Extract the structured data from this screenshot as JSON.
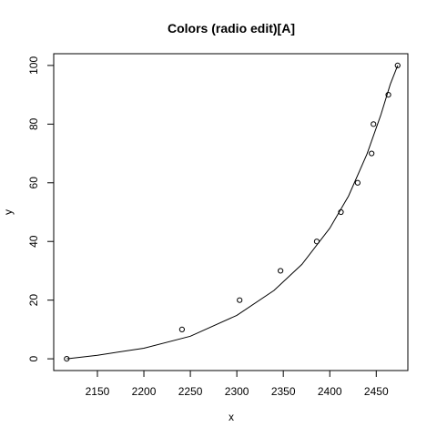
{
  "chart_data": {
    "type": "scatter",
    "title": "Colors (radio edit)[A]",
    "xlabel": "x",
    "ylabel": "y",
    "xlim": [
      2103,
      2484
    ],
    "ylim": [
      -4,
      104
    ],
    "x_ticks": [
      2150,
      2200,
      2250,
      2300,
      2350,
      2400,
      2450
    ],
    "y_ticks": [
      0,
      20,
      40,
      60,
      80,
      100
    ],
    "grid": false,
    "legend": "none",
    "series": [
      {
        "kind": "points",
        "x": [
          2117,
          2241,
          2303,
          2347,
          2386,
          2412,
          2430,
          2445,
          2447,
          2463,
          2473
        ],
        "y": [
          0,
          10,
          20,
          30,
          40,
          50,
          60,
          70,
          80,
          90,
          100
        ]
      },
      {
        "kind": "line",
        "x": [
          2117,
          2150,
          2200,
          2250,
          2300,
          2340,
          2370,
          2400,
          2420,
          2440,
          2455,
          2465,
          2473
        ],
        "y": [
          0,
          1.2,
          3.6,
          7.7,
          14.8,
          23.3,
          32.2,
          44.5,
          55.4,
          69.8,
          83.2,
          93.5,
          100
        ]
      }
    ]
  }
}
